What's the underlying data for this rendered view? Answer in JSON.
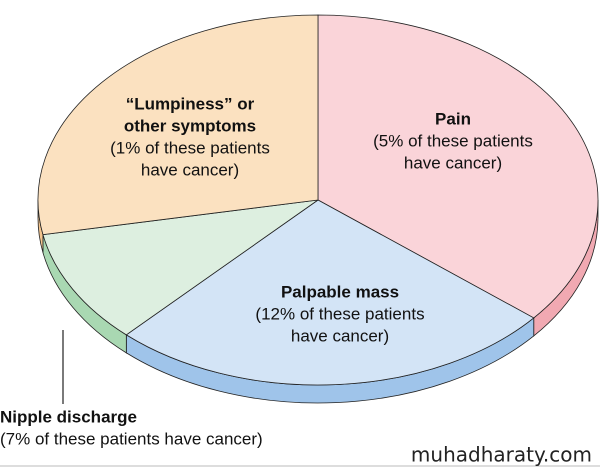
{
  "chart_data": {
    "type": "pie",
    "categories": [
      "Pain",
      "Palpable mass",
      "Nipple discharge",
      "Lumpiness"
    ],
    "values": [
      36,
      26,
      10,
      28
    ],
    "colors": [
      "#fad4d9",
      "#d3e4f6",
      "#ddefe0",
      "#fbe1c0"
    ],
    "side_colors": [
      "#f1a9b2",
      "#9fc4ea",
      "#a9d8b2",
      "#f3c58f"
    ],
    "labels": [
      {
        "title": [
          "Pain"
        ],
        "note": [
          "(5% of these patients",
          "have cancer)"
        ]
      },
      {
        "title": [
          "Palpable mass"
        ],
        "note": [
          "(12% of these patients",
          "have cancer)"
        ]
      },
      {
        "title": [
          "Nipple discharge"
        ],
        "note": [
          "(7% of these patients have cancer)"
        ]
      },
      {
        "title": [
          "“Lumpiness” or",
          "other symptoms"
        ],
        "note": [
          "(1% of these patients",
          "have cancer)"
        ]
      }
    ],
    "watermark": "muhadharaty.com"
  }
}
